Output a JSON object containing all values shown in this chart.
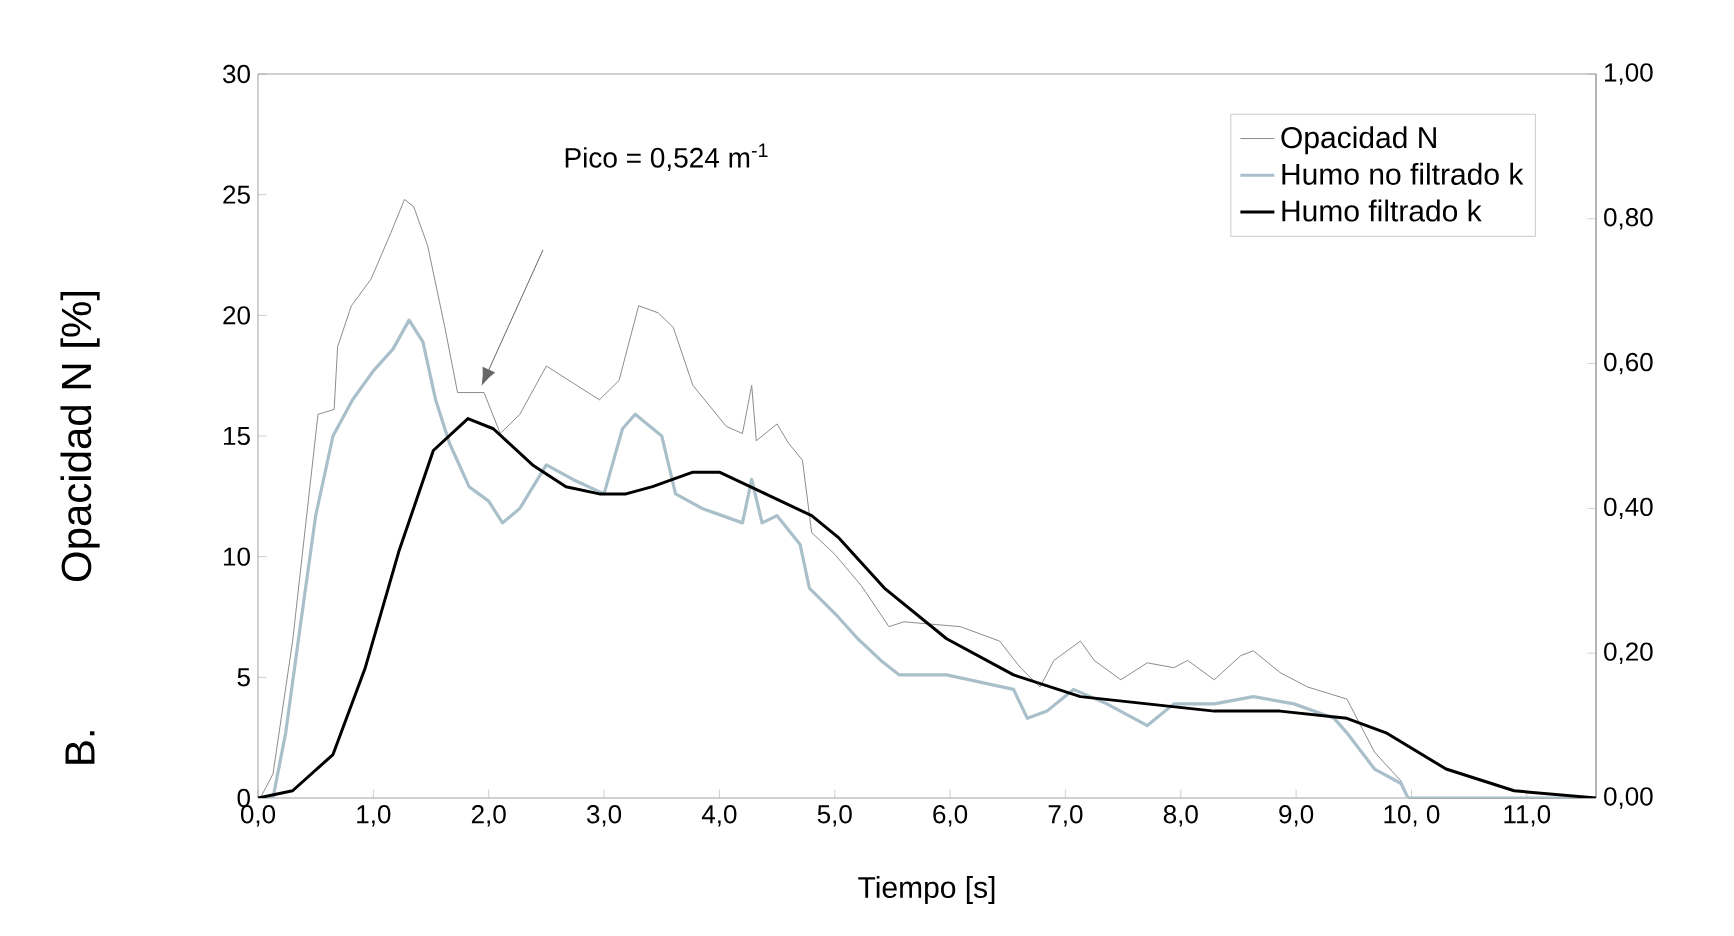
{
  "chart_data": {
    "type": "line",
    "xlabel": "Tiempo [s]",
    "ylabel": "Opacidad N [%]",
    "xlim": [
      0,
      11.6
    ],
    "ylim": [
      0,
      30
    ],
    "y2lim": [
      0,
      1
    ],
    "xticks": [
      {
        "value": 0,
        "label": "0,0"
      },
      {
        "value": 1,
        "label": "1,0"
      },
      {
        "value": 2,
        "label": "2,0"
      },
      {
        "value": 3,
        "label": "3,0"
      },
      {
        "value": 4,
        "label": "4,0"
      },
      {
        "value": 5,
        "label": "5,0"
      },
      {
        "value": 6,
        "label": "6,0"
      },
      {
        "value": 7,
        "label": "7,0"
      },
      {
        "value": 8,
        "label": "8,0"
      },
      {
        "value": 9,
        "label": "9,0"
      },
      {
        "value": 10,
        "label": "10, 0"
      },
      {
        "value": 11,
        "label": "11,0"
      }
    ],
    "yticks": [
      0,
      5,
      10,
      15,
      20,
      25,
      30
    ],
    "y2ticks": [
      {
        "value": 0,
        "label": "0,00"
      },
      {
        "value": 0.2,
        "label": "0,20"
      },
      {
        "value": 0.4,
        "label": "0,40"
      },
      {
        "value": 0.6,
        "label": "0,60"
      },
      {
        "value": 0.8,
        "label": "0,80"
      },
      {
        "value": 1,
        "label": "1,00"
      }
    ],
    "legend": "top right",
    "annotations": [
      "B.",
      "Pico = 0,524 m$^{-1}$"
    ],
    "series": [
      {
        "name": "Opacidad N",
        "color": "#8c8c8c",
        "x": [
          0.02,
          0.13,
          0.3,
          0.45,
          0.52,
          0.66,
          0.69,
          0.81,
          0.98,
          1.15,
          1.27,
          1.35,
          1.47,
          1.62,
          1.73,
          1.96,
          2.1,
          2.27,
          2.5,
          2.73,
          2.96,
          3.13,
          3.3,
          3.47,
          3.6,
          3.77,
          4.06,
          4.2,
          4.28,
          4.32,
          4.5,
          4.6,
          4.72,
          4.8,
          5.0,
          5.23,
          5.47,
          5.6,
          6.09,
          6.43,
          6.61,
          6.78,
          6.9,
          7.13,
          7.25,
          7.48,
          7.71,
          7.94,
          8.06,
          8.29,
          8.52,
          8.63,
          8.86,
          9.1,
          9.44,
          9.68,
          9.91,
          9.97,
          11.6
        ],
        "values": [
          0,
          1.0,
          6.5,
          12.9,
          15.9,
          16.1,
          18.7,
          20.4,
          21.5,
          23.4,
          24.8,
          24.5,
          22.9,
          19.5,
          16.8,
          16.8,
          15.1,
          15.9,
          17.9,
          17.2,
          16.5,
          17.3,
          20.4,
          20.1,
          19.5,
          17.1,
          15.4,
          15.1,
          17.1,
          14.8,
          15.5,
          14.7,
          14.0,
          11.0,
          10.1,
          8.8,
          7.1,
          7.3,
          7.1,
          6.5,
          5.4,
          4.6,
          5.7,
          6.5,
          5.7,
          4.9,
          5.6,
          5.4,
          5.7,
          4.9,
          5.9,
          6.1,
          5.2,
          4.6,
          4.1,
          1.9,
          0.7,
          0,
          0
        ]
      },
      {
        "name": "Humo no filtrado k",
        "color": "#a9bfca",
        "axis": "y2",
        "x": [
          0.02,
          0.13,
          0.24,
          0.36,
          0.5,
          0.65,
          0.82,
          1.0,
          1.17,
          1.31,
          1.43,
          1.54,
          1.66,
          1.83,
          2.0,
          2.12,
          2.27,
          2.5,
          2.73,
          3.0,
          3.16,
          3.27,
          3.5,
          3.62,
          3.85,
          4.2,
          4.28,
          4.37,
          4.5,
          4.7,
          4.78,
          5.03,
          5.2,
          5.4,
          5.56,
          5.97,
          6.26,
          6.55,
          6.67,
          6.84,
          7.07,
          7.36,
          7.71,
          7.94,
          8.29,
          8.63,
          8.98,
          9.33,
          9.44,
          9.68,
          9.91,
          9.97,
          11.6
        ],
        "values": [
          0,
          0,
          0.09,
          0.23,
          0.39,
          0.5,
          0.55,
          0.59,
          0.62,
          0.66,
          0.63,
          0.55,
          0.49,
          0.43,
          0.41,
          0.38,
          0.4,
          0.46,
          0.44,
          0.42,
          0.51,
          0.53,
          0.5,
          0.42,
          0.4,
          0.38,
          0.44,
          0.38,
          0.39,
          0.35,
          0.29,
          0.25,
          0.22,
          0.19,
          0.17,
          0.17,
          0.16,
          0.15,
          0.11,
          0.12,
          0.15,
          0.13,
          0.1,
          0.13,
          0.13,
          0.14,
          0.13,
          0.11,
          0.09,
          0.04,
          0.02,
          0,
          0
        ]
      },
      {
        "name": "Humo filtrado k",
        "color": "#000000",
        "axis": "y2",
        "x": [
          0,
          0.3,
          0.65,
          0.93,
          1.22,
          1.52,
          1.82,
          2.04,
          2.38,
          2.67,
          2.96,
          3.19,
          3.42,
          3.77,
          4.0,
          4.4,
          4.8,
          5.03,
          5.43,
          5.97,
          6.55,
          7.13,
          7.71,
          8.29,
          8.86,
          9.44,
          9.78,
          10.3,
          10.89,
          11.6
        ],
        "values": [
          0,
          0.01,
          0.06,
          0.18,
          0.34,
          0.48,
          0.524,
          0.51,
          0.46,
          0.43,
          0.42,
          0.42,
          0.43,
          0.45,
          0.45,
          0.42,
          0.39,
          0.36,
          0.29,
          0.22,
          0.17,
          0.14,
          0.13,
          0.12,
          0.12,
          0.11,
          0.09,
          0.04,
          0.01,
          0
        ]
      }
    ]
  }
}
